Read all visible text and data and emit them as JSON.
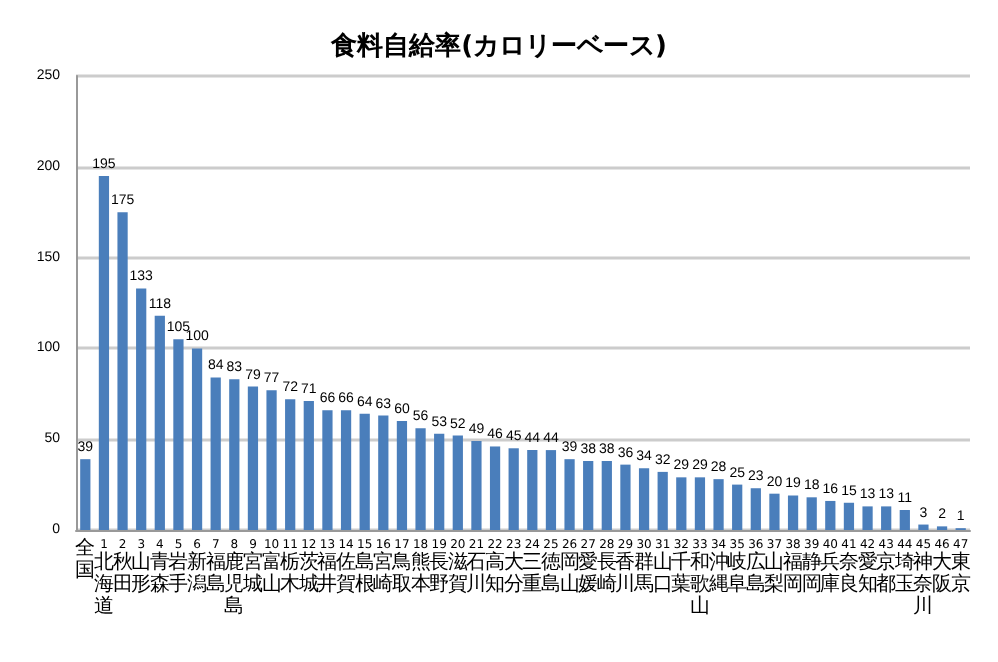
{
  "chart_data": {
    "type": "bar",
    "title": "食料自給率(カロリーベース)",
    "categories": [
      "全国",
      "1北海道",
      "2秋田",
      "3山形",
      "4青森",
      "5岩手",
      "6新潟",
      "7福島",
      "8鹿児島",
      "9宮城",
      "10富山",
      "11栃木",
      "12茨城",
      "13福井",
      "14佐賀",
      "15島根",
      "16宮崎",
      "17鳥取",
      "18熊本",
      "19長野",
      "20滋賀",
      "21石川",
      "22高知",
      "23大分",
      "24三重",
      "25徳島",
      "26岡山",
      "27愛媛",
      "28長崎",
      "29香川",
      "30群馬",
      "31山口",
      "32千葉",
      "33和歌山",
      "34沖縄",
      "35岐阜",
      "36広島",
      "37山梨",
      "38福岡",
      "39静岡",
      "40兵庫",
      "41奈良",
      "42愛知",
      "43京都",
      "44埼玉",
      "45神奈川",
      "46大阪",
      "47東京"
    ],
    "values": [
      39,
      195,
      175,
      133,
      118,
      105,
      100,
      84,
      83,
      79,
      77,
      72,
      71,
      66,
      66,
      64,
      63,
      60,
      56,
      53,
      52,
      49,
      46,
      45,
      44,
      44,
      39,
      38,
      38,
      36,
      34,
      32,
      29,
      29,
      28,
      25,
      23,
      20,
      19,
      18,
      16,
      15,
      13,
      13,
      11,
      3,
      2,
      1
    ],
    "color": "#4a7ebb",
    "data_labels": true,
    "ylim": [
      0,
      250
    ],
    "yticks": [
      0,
      50,
      100,
      150,
      200,
      250
    ],
    "grid": "y"
  }
}
